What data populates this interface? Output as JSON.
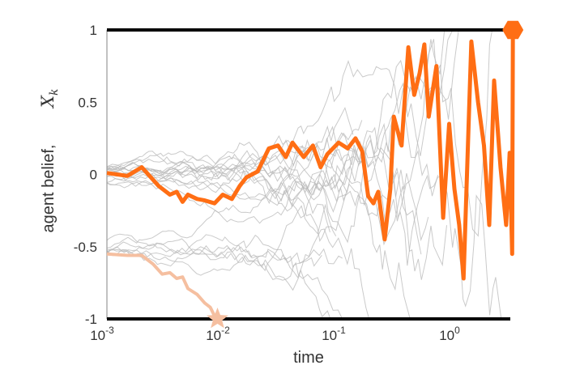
{
  "chart_data": {
    "type": "line",
    "title": "",
    "xlabel": "time",
    "ylabel": "agent belief,",
    "ylabel_symbol": "X",
    "ylabel_subscript": "k",
    "x_scale": "log",
    "xlim": [
      0.001,
      3.5
    ],
    "ylim": [
      -1,
      1
    ],
    "x_ticks": [
      {
        "value": 0.001,
        "base": "10",
        "exp": "-3"
      },
      {
        "value": 0.01,
        "base": "10",
        "exp": "-2"
      },
      {
        "value": 0.1,
        "base": "10",
        "exp": "-1"
      },
      {
        "value": 1,
        "base": "10",
        "exp": "0"
      }
    ],
    "y_ticks": [
      {
        "value": 1,
        "label": "1"
      },
      {
        "value": 0.5,
        "label": "0.5"
      },
      {
        "value": 0,
        "label": "0"
      },
      {
        "value": -0.5,
        "label": "-0.5"
      },
      {
        "value": -1,
        "label": "-1"
      }
    ],
    "grid": false,
    "legend": null,
    "boundaries": [
      {
        "name": "upper-threshold",
        "y": 1,
        "color": "#000000"
      },
      {
        "name": "lower-threshold",
        "y": -1,
        "color": "#000000"
      }
    ],
    "series": [
      {
        "name": "highlighted-agent-upper",
        "color": "#ff6e14",
        "width": 5,
        "end_marker": "hexagon",
        "end_event": {
          "t": 3.2,
          "y": 1
        },
        "points": [
          [
            0.001,
            0.01
          ],
          [
            0.0015,
            -0.01
          ],
          [
            0.002,
            0.05
          ],
          [
            0.0028,
            -0.08
          ],
          [
            0.0035,
            -0.14
          ],
          [
            0.004,
            -0.12
          ],
          [
            0.0045,
            -0.19
          ],
          [
            0.005,
            -0.14
          ],
          [
            0.006,
            -0.17
          ],
          [
            0.007,
            -0.18
          ],
          [
            0.0085,
            -0.2
          ],
          [
            0.01,
            -0.14
          ],
          [
            0.012,
            -0.17
          ],
          [
            0.014,
            -0.08
          ],
          [
            0.016,
            -0.02
          ],
          [
            0.02,
            0.02
          ],
          [
            0.025,
            0.18
          ],
          [
            0.03,
            0.2
          ],
          [
            0.035,
            0.12
          ],
          [
            0.04,
            0.22
          ],
          [
            0.05,
            0.12
          ],
          [
            0.06,
            0.2
          ],
          [
            0.07,
            0.05
          ],
          [
            0.08,
            0.14
          ],
          [
            0.1,
            0.22
          ],
          [
            0.12,
            0.18
          ],
          [
            0.14,
            0.25
          ],
          [
            0.16,
            0.16
          ],
          [
            0.18,
            -0.15
          ],
          [
            0.2,
            -0.2
          ],
          [
            0.22,
            -0.12
          ],
          [
            0.25,
            -0.45
          ],
          [
            0.28,
            -0.1
          ],
          [
            0.3,
            0.4
          ],
          [
            0.35,
            0.2
          ],
          [
            0.4,
            0.88
          ],
          [
            0.45,
            0.55
          ],
          [
            0.5,
            0.7
          ],
          [
            0.55,
            0.9
          ],
          [
            0.6,
            0.4
          ],
          [
            0.7,
            0.75
          ],
          [
            0.8,
            -0.3
          ],
          [
            0.9,
            0.35
          ],
          [
            1.0,
            -0.1
          ],
          [
            1.1,
            -0.35
          ],
          [
            1.2,
            -0.72
          ],
          [
            1.4,
            0.92
          ],
          [
            1.6,
            0.5
          ],
          [
            1.8,
            0.2
          ],
          [
            2.0,
            -0.35
          ],
          [
            2.2,
            0.65
          ],
          [
            2.5,
            0.05
          ],
          [
            2.8,
            -0.35
          ],
          [
            3.0,
            0.15
          ],
          [
            3.15,
            -0.55
          ],
          [
            3.2,
            1.0
          ]
        ]
      },
      {
        "name": "highlighted-agent-lower",
        "color": "#f5bfa0",
        "width": 4,
        "end_marker": "star",
        "end_event": {
          "t": 0.009,
          "y": -1
        },
        "points": [
          [
            0.001,
            -0.55
          ],
          [
            0.0015,
            -0.56
          ],
          [
            0.002,
            -0.56
          ],
          [
            0.0025,
            -0.62
          ],
          [
            0.003,
            -0.69
          ],
          [
            0.0035,
            -0.68
          ],
          [
            0.004,
            -0.72
          ],
          [
            0.0045,
            -0.71
          ],
          [
            0.005,
            -0.79
          ],
          [
            0.006,
            -0.83
          ],
          [
            0.007,
            -0.89
          ],
          [
            0.0078,
            -0.92
          ],
          [
            0.0085,
            -0.98
          ],
          [
            0.009,
            -1.0
          ]
        ]
      }
    ],
    "background_series": {
      "count": 22,
      "color": "#b8b8b8",
      "width": 1,
      "description": "thin grey sample trajectories starting near 0 and near -0.5, diffusing with growing variance over time"
    }
  }
}
